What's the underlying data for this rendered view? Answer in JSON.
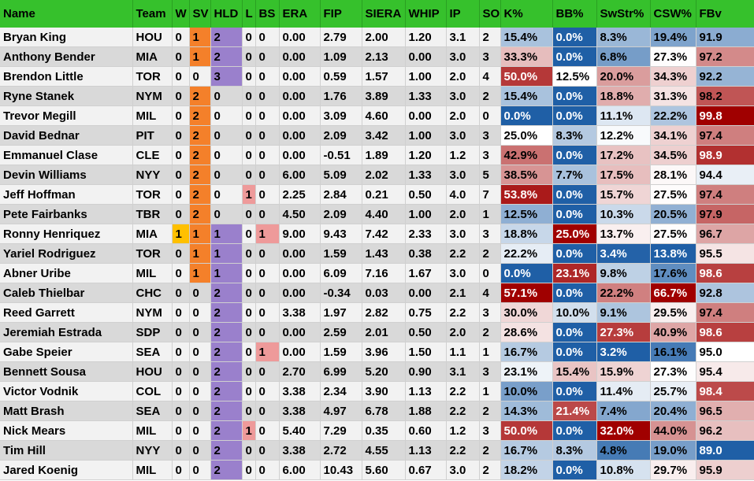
{
  "headers": [
    "Name",
    "Team",
    "W",
    "SV",
    "HLD",
    "L",
    "BS",
    "ERA",
    "FIP",
    "SIERA",
    "WHIP",
    "IP",
    "SO",
    "K%",
    "BB%",
    "SwStr%",
    "CSW%",
    "FBv"
  ],
  "rows": [
    [
      "Bryan King",
      "HOU",
      "0",
      "1",
      "2",
      "0",
      "0",
      "0.00",
      "2.79",
      "2.00",
      "1.20",
      "3.1",
      "2",
      "15.4%",
      "0.0%",
      "8.3%",
      "19.4%",
      "91.9"
    ],
    [
      "Anthony Bender",
      "MIA",
      "0",
      "1",
      "2",
      "0",
      "0",
      "0.00",
      "1.09",
      "2.13",
      "0.00",
      "3.0",
      "3",
      "33.3%",
      "0.0%",
      "6.8%",
      "27.3%",
      "97.2"
    ],
    [
      "Brendon Little",
      "TOR",
      "0",
      "0",
      "3",
      "0",
      "0",
      "0.00",
      "0.59",
      "1.57",
      "1.00",
      "2.0",
      "4",
      "50.0%",
      "12.5%",
      "20.0%",
      "34.3%",
      "92.2"
    ],
    [
      "Ryne Stanek",
      "NYM",
      "0",
      "2",
      "0",
      "0",
      "0",
      "0.00",
      "1.76",
      "3.89",
      "1.33",
      "3.0",
      "2",
      "15.4%",
      "0.0%",
      "18.8%",
      "31.3%",
      "98.2"
    ],
    [
      "Trevor Megill",
      "MIL",
      "0",
      "2",
      "0",
      "0",
      "0",
      "0.00",
      "3.09",
      "4.60",
      "0.00",
      "2.0",
      "0",
      "0.0%",
      "0.0%",
      "11.1%",
      "22.2%",
      "99.8"
    ],
    [
      "David Bednar",
      "PIT",
      "0",
      "2",
      "0",
      "0",
      "0",
      "0.00",
      "2.09",
      "3.42",
      "1.00",
      "3.0",
      "3",
      "25.0%",
      "8.3%",
      "12.2%",
      "34.1%",
      "97.4"
    ],
    [
      "Emmanuel Clase",
      "CLE",
      "0",
      "2",
      "0",
      "0",
      "0",
      "0.00",
      "-0.51",
      "1.89",
      "1.20",
      "1.2",
      "3",
      "42.9%",
      "0.0%",
      "17.2%",
      "34.5%",
      "98.9"
    ],
    [
      "Devin Williams",
      "NYY",
      "0",
      "2",
      "0",
      "0",
      "0",
      "6.00",
      "5.09",
      "2.02",
      "1.33",
      "3.0",
      "5",
      "38.5%",
      "7.7%",
      "17.5%",
      "28.1%",
      "94.4"
    ],
    [
      "Jeff Hoffman",
      "TOR",
      "0",
      "2",
      "0",
      "1",
      "0",
      "2.25",
      "2.84",
      "0.21",
      "0.50",
      "4.0",
      "7",
      "53.8%",
      "0.0%",
      "15.7%",
      "27.5%",
      "97.4"
    ],
    [
      "Pete Fairbanks",
      "TBR",
      "0",
      "2",
      "0",
      "0",
      "0",
      "4.50",
      "2.09",
      "4.40",
      "1.00",
      "2.0",
      "1",
      "12.5%",
      "0.0%",
      "10.3%",
      "20.5%",
      "97.9"
    ],
    [
      "Ronny Henriquez",
      "MIA",
      "1",
      "1",
      "1",
      "0",
      "1",
      "9.00",
      "9.43",
      "7.42",
      "2.33",
      "3.0",
      "3",
      "18.8%",
      "25.0%",
      "13.7%",
      "27.5%",
      "96.7"
    ],
    [
      "Yariel Rodriguez",
      "TOR",
      "0",
      "1",
      "1",
      "0",
      "0",
      "0.00",
      "1.59",
      "1.43",
      "0.38",
      "2.2",
      "2",
      "22.2%",
      "0.0%",
      "3.4%",
      "13.8%",
      "95.5"
    ],
    [
      "Abner Uribe",
      "MIL",
      "0",
      "1",
      "1",
      "0",
      "0",
      "0.00",
      "6.09",
      "7.16",
      "1.67",
      "3.0",
      "0",
      "0.0%",
      "23.1%",
      "9.8%",
      "17.6%",
      "98.6"
    ],
    [
      "Caleb Thielbar",
      "CHC",
      "0",
      "0",
      "2",
      "0",
      "0",
      "0.00",
      "-0.34",
      "0.03",
      "0.00",
      "2.1",
      "4",
      "57.1%",
      "0.0%",
      "22.2%",
      "66.7%",
      "92.8"
    ],
    [
      "Reed Garrett",
      "NYM",
      "0",
      "0",
      "2",
      "0",
      "0",
      "3.38",
      "1.97",
      "2.82",
      "0.75",
      "2.2",
      "3",
      "30.0%",
      "10.0%",
      "9.1%",
      "29.5%",
      "97.4"
    ],
    [
      "Jeremiah Estrada",
      "SDP",
      "0",
      "0",
      "2",
      "0",
      "0",
      "0.00",
      "2.59",
      "2.01",
      "0.50",
      "2.0",
      "2",
      "28.6%",
      "0.0%",
      "27.3%",
      "40.9%",
      "98.6"
    ],
    [
      "Gabe Speier",
      "SEA",
      "0",
      "0",
      "2",
      "0",
      "1",
      "0.00",
      "1.59",
      "3.96",
      "1.50",
      "1.1",
      "1",
      "16.7%",
      "0.0%",
      "3.2%",
      "16.1%",
      "95.0"
    ],
    [
      "Bennett Sousa",
      "HOU",
      "0",
      "0",
      "2",
      "0",
      "0",
      "2.70",
      "6.99",
      "5.20",
      "0.90",
      "3.1",
      "3",
      "23.1%",
      "15.4%",
      "15.9%",
      "27.3%",
      "95.4"
    ],
    [
      "Victor Vodnik",
      "COL",
      "0",
      "0",
      "2",
      "0",
      "0",
      "3.38",
      "2.34",
      "3.90",
      "1.13",
      "2.2",
      "1",
      "10.0%",
      "0.0%",
      "11.4%",
      "25.7%",
      "98.4"
    ],
    [
      "Matt Brash",
      "SEA",
      "0",
      "0",
      "2",
      "0",
      "0",
      "3.38",
      "4.97",
      "6.78",
      "1.88",
      "2.2",
      "2",
      "14.3%",
      "21.4%",
      "7.4%",
      "20.4%",
      "96.5"
    ],
    [
      "Nick Mears",
      "MIL",
      "0",
      "0",
      "2",
      "1",
      "0",
      "5.40",
      "7.29",
      "0.35",
      "0.60",
      "1.2",
      "3",
      "50.0%",
      "0.0%",
      "32.0%",
      "44.0%",
      "96.2"
    ],
    [
      "Tim Hill",
      "NYY",
      "0",
      "0",
      "2",
      "0",
      "0",
      "3.38",
      "2.72",
      "4.55",
      "1.13",
      "2.2",
      "2",
      "16.7%",
      "8.3%",
      "4.8%",
      "19.0%",
      "89.0"
    ],
    [
      "Jared Koenig",
      "MIL",
      "0",
      "0",
      "2",
      "0",
      "0",
      "6.00",
      "10.43",
      "5.60",
      "0.67",
      "3.0",
      "2",
      "18.2%",
      "0.0%",
      "10.8%",
      "29.7%",
      "95.9"
    ]
  ],
  "colors": {
    "header_bg": "#36c12c",
    "w_highlight": "#ffc000",
    "sv_highlight": "#f4802a",
    "hld_highlight": "#9a80cc",
    "l_bs_highlight": "#ee9a9a",
    "scale_low": "#1f5fa6",
    "scale_mid": "#ffffff",
    "scale_high": "#a00000"
  },
  "heat_scales": {
    "K%": [
      0,
      25,
      57.1
    ],
    "BB%": [
      0,
      12.5,
      25
    ],
    "SwStr%": [
      3.2,
      12.5,
      32
    ],
    "CSW%": [
      13.8,
      27,
      66.7
    ],
    "FBv": [
      89,
      95,
      99.8
    ]
  }
}
